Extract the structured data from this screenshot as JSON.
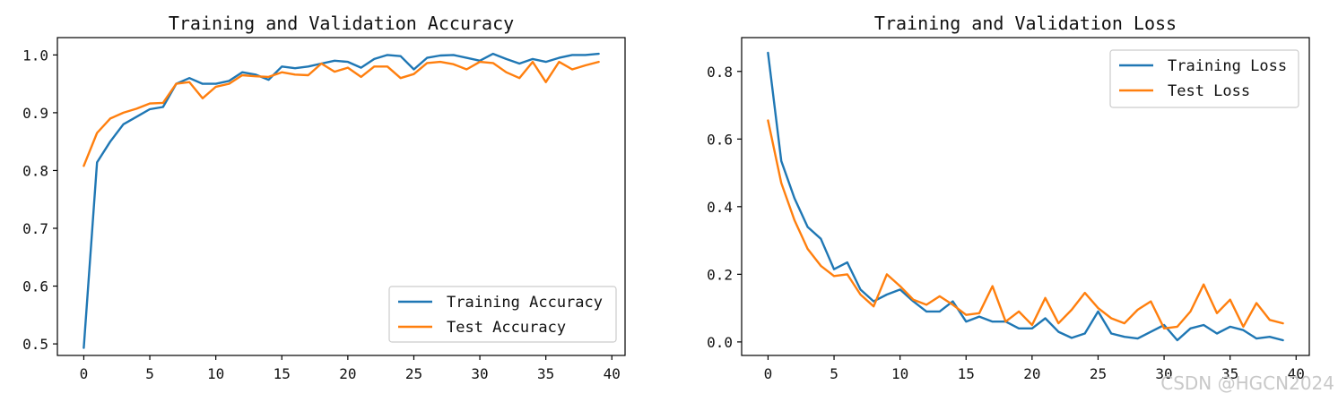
{
  "chart_data": [
    {
      "type": "line",
      "title": "Training and Validation Accuracy",
      "xlabel": "",
      "ylabel": "",
      "xlim": [
        -2,
        41
      ],
      "ylim": [
        0.48,
        1.03
      ],
      "xticks": [
        0,
        5,
        10,
        15,
        20,
        25,
        30,
        35,
        40
      ],
      "yticks": [
        0.5,
        0.6,
        0.7,
        0.8,
        0.9,
        1.0
      ],
      "ytick_labels": [
        "0.5",
        "0.6",
        "0.7",
        "0.8",
        "0.9",
        "1.0"
      ],
      "legend_position": "lower right",
      "x": [
        0,
        1,
        2,
        3,
        4,
        5,
        6,
        7,
        8,
        9,
        10,
        11,
        12,
        13,
        14,
        15,
        16,
        17,
        18,
        19,
        20,
        21,
        22,
        23,
        24,
        25,
        26,
        27,
        28,
        29,
        30,
        31,
        32,
        33,
        34,
        35,
        36,
        37,
        38,
        39
      ],
      "series": [
        {
          "name": "Training Accuracy",
          "color": "#1f77b4",
          "values": [
            0.493,
            0.814,
            0.85,
            0.88,
            0.893,
            0.906,
            0.91,
            0.95,
            0.96,
            0.95,
            0.95,
            0.955,
            0.97,
            0.966,
            0.957,
            0.98,
            0.977,
            0.98,
            0.985,
            0.99,
            0.988,
            0.978,
            0.993,
            1.0,
            0.998,
            0.975,
            0.995,
            0.999,
            1.0,
            0.995,
            0.99,
            1.002,
            0.993,
            0.985,
            0.993,
            0.988,
            0.995,
            1.0,
            1.0,
            1.002
          ]
        },
        {
          "name": "Test Accuracy",
          "color": "#ff7f0e",
          "values": [
            0.808,
            0.865,
            0.89,
            0.9,
            0.907,
            0.916,
            0.917,
            0.95,
            0.953,
            0.925,
            0.945,
            0.95,
            0.965,
            0.963,
            0.962,
            0.97,
            0.966,
            0.965,
            0.985,
            0.971,
            0.978,
            0.962,
            0.98,
            0.98,
            0.96,
            0.967,
            0.986,
            0.988,
            0.984,
            0.975,
            0.988,
            0.986,
            0.97,
            0.96,
            0.988,
            0.953,
            0.988,
            0.975,
            0.982,
            0.988
          ]
        }
      ]
    },
    {
      "type": "line",
      "title": "Training and Validation Loss",
      "xlabel": "",
      "ylabel": "",
      "xlim": [
        -2,
        41
      ],
      "ylim": [
        -0.04,
        0.9
      ],
      "xticks": [
        0,
        5,
        10,
        15,
        20,
        25,
        30,
        35,
        40
      ],
      "yticks": [
        0.0,
        0.2,
        0.4,
        0.6,
        0.8
      ],
      "ytick_labels": [
        "0.0",
        "0.2",
        "0.4",
        "0.6",
        "0.8"
      ],
      "legend_position": "upper right",
      "x": [
        0,
        1,
        2,
        3,
        4,
        5,
        6,
        7,
        8,
        9,
        10,
        11,
        12,
        13,
        14,
        15,
        16,
        17,
        18,
        19,
        20,
        21,
        22,
        23,
        24,
        25,
        26,
        27,
        28,
        29,
        30,
        31,
        32,
        33,
        34,
        35,
        36,
        37,
        38,
        39
      ],
      "series": [
        {
          "name": "Training Loss",
          "color": "#1f77b4",
          "values": [
            0.855,
            0.535,
            0.425,
            0.34,
            0.305,
            0.215,
            0.235,
            0.155,
            0.12,
            0.14,
            0.155,
            0.12,
            0.09,
            0.09,
            0.12,
            0.06,
            0.075,
            0.06,
            0.06,
            0.04,
            0.04,
            0.07,
            0.03,
            0.012,
            0.025,
            0.09,
            0.025,
            0.015,
            0.01,
            0.03,
            0.05,
            0.005,
            0.04,
            0.05,
            0.025,
            0.045,
            0.035,
            0.01,
            0.015,
            0.005
          ]
        },
        {
          "name": "Test Loss",
          "color": "#ff7f0e",
          "values": [
            0.655,
            0.47,
            0.36,
            0.275,
            0.225,
            0.195,
            0.2,
            0.14,
            0.105,
            0.2,
            0.165,
            0.125,
            0.11,
            0.135,
            0.11,
            0.08,
            0.085,
            0.165,
            0.06,
            0.09,
            0.05,
            0.13,
            0.055,
            0.095,
            0.145,
            0.1,
            0.07,
            0.055,
            0.095,
            0.12,
            0.04,
            0.045,
            0.09,
            0.17,
            0.085,
            0.125,
            0.045,
            0.115,
            0.065,
            0.055
          ]
        }
      ]
    }
  ],
  "watermark": "CSDN @HGCN2024"
}
